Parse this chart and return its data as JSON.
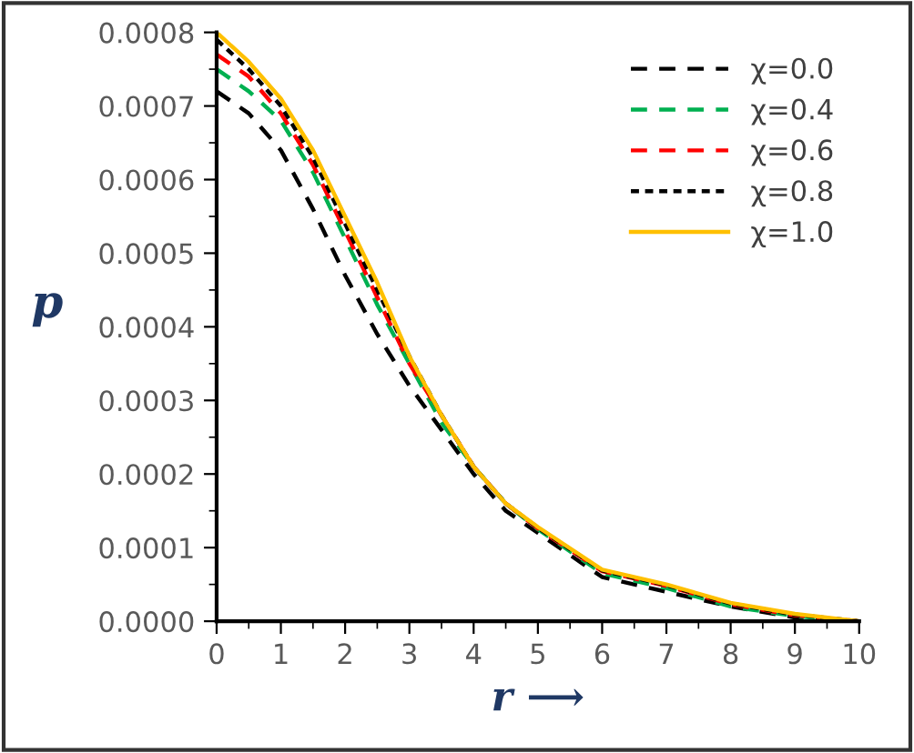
{
  "chart_data": {
    "type": "line",
    "xlabel": "r ⟶",
    "ylabel": "p",
    "x": [
      0,
      0.5,
      1,
      1.5,
      2,
      2.5,
      3,
      3.5,
      4,
      4.5,
      5,
      6,
      7,
      8,
      9,
      10
    ],
    "series": [
      {
        "name": "χ=0.0",
        "color": "#000000",
        "line_style": "dashed",
        "values": [
          0.00072,
          0.00069,
          0.00064,
          0.00056,
          0.00047,
          0.00039,
          0.00032,
          0.00026,
          0.0002,
          0.00015,
          0.00012,
          6e-05,
          4e-05,
          2e-05,
          5e-06,
          0
        ]
      },
      {
        "name": "χ=0.4",
        "color": "#00b050",
        "line_style": "dashed",
        "values": [
          0.00075,
          0.00072,
          0.00068,
          0.00061,
          0.00052,
          0.00043,
          0.00035,
          0.00027,
          0.00021,
          0.00016,
          0.000125,
          6.5e-05,
          4.5e-05,
          2e-05,
          7e-06,
          0
        ]
      },
      {
        "name": "χ=0.6",
        "color": "#ff0000",
        "line_style": "dashed",
        "values": [
          0.00077,
          0.00074,
          0.00069,
          0.00062,
          0.00053,
          0.00044,
          0.00035,
          0.00028,
          0.00021,
          0.00016,
          0.000126,
          6.8e-05,
          4.8e-05,
          2.3e-05,
          8e-06,
          0
        ]
      },
      {
        "name": "χ=0.8",
        "color": "#000000",
        "line_style": "dotted",
        "values": [
          0.00079,
          0.00075,
          0.0007,
          0.00063,
          0.00054,
          0.00045,
          0.00036,
          0.00028,
          0.00021,
          0.00016,
          0.000127,
          6.9e-05,
          4.9e-05,
          2.4e-05,
          9e-06,
          0
        ]
      },
      {
        "name": "χ=1.0",
        "color": "#ffc000",
        "line_style": "solid",
        "values": [
          0.0008,
          0.00076,
          0.00071,
          0.00064,
          0.00055,
          0.00046,
          0.00036,
          0.00028,
          0.00021,
          0.00016,
          0.000128,
          7e-05,
          5e-05,
          2.5e-05,
          1e-05,
          0
        ]
      }
    ],
    "xlim": [
      0,
      10
    ],
    "xticks": [
      0,
      1,
      2,
      3,
      4,
      5,
      6,
      7,
      8,
      9,
      10
    ],
    "ylim": [
      0,
      0.0008
    ],
    "yticks": [
      {
        "value": 0,
        "label": "0.0000"
      },
      {
        "value": 0.0001,
        "label": "0.0001"
      },
      {
        "value": 0.0002,
        "label": "0.0002"
      },
      {
        "value": 0.0003,
        "label": "0.0003"
      },
      {
        "value": 0.0004,
        "label": "0.0004"
      },
      {
        "value": 0.0005,
        "label": "0.0005"
      },
      {
        "value": 0.0006,
        "label": "0.0006"
      },
      {
        "value": 0.0007,
        "label": "0.0007"
      },
      {
        "value": 0.0008,
        "label": "0.0008"
      }
    ],
    "grid": false,
    "legend": "top right",
    "marker": "none"
  }
}
